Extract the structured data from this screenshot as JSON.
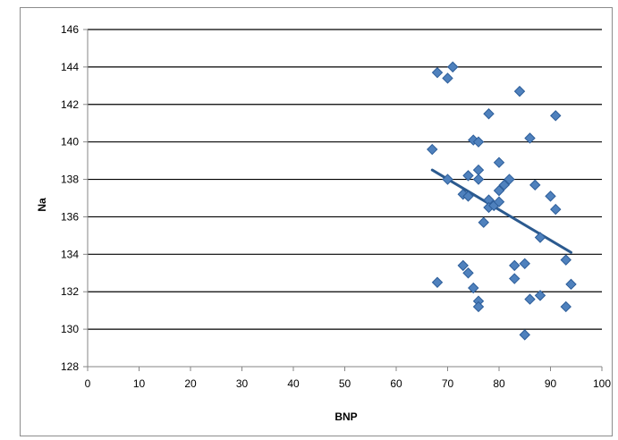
{
  "chart_data": {
    "type": "scatter",
    "title": "",
    "xlabel": "BNP",
    "ylabel": "Na",
    "xlim": [
      0,
      100
    ],
    "ylim": [
      128,
      146
    ],
    "x_ticks": [
      0,
      10,
      20,
      30,
      40,
      50,
      60,
      70,
      80,
      90,
      100
    ],
    "y_ticks": [
      128,
      130,
      132,
      134,
      136,
      138,
      140,
      142,
      144,
      146
    ],
    "grid": "horizontal",
    "legend": "none",
    "colors": {
      "marker": "#4f81bd",
      "marker_edge": "#2c5d99",
      "trendline": "#2b5a8f",
      "gridline": "#000000"
    },
    "series": [
      {
        "marker": "diamond",
        "points": [
          [
            67,
            139.6
          ],
          [
            68,
            143.7
          ],
          [
            68,
            132.5
          ],
          [
            70,
            143.4
          ],
          [
            70,
            138.0
          ],
          [
            71,
            144.0
          ],
          [
            73,
            137.2
          ],
          [
            73,
            133.4
          ],
          [
            74,
            138.2
          ],
          [
            74,
            137.1
          ],
          [
            74,
            133.0
          ],
          [
            75,
            140.1
          ],
          [
            75,
            132.2
          ],
          [
            76,
            140.0
          ],
          [
            76,
            138.5
          ],
          [
            76,
            138.0
          ],
          [
            76,
            131.5
          ],
          [
            76,
            131.2
          ],
          [
            77,
            135.7
          ],
          [
            78,
            141.5
          ],
          [
            78,
            136.9
          ],
          [
            78,
            136.5
          ],
          [
            79,
            136.6
          ],
          [
            80,
            138.9
          ],
          [
            80,
            137.4
          ],
          [
            80,
            136.8
          ],
          [
            81,
            137.7
          ],
          [
            82,
            138.0
          ],
          [
            83,
            133.4
          ],
          [
            83,
            132.7
          ],
          [
            84,
            142.7
          ],
          [
            85,
            133.5
          ],
          [
            85,
            129.7
          ],
          [
            86,
            140.2
          ],
          [
            86,
            131.6
          ],
          [
            87,
            137.7
          ],
          [
            88,
            134.9
          ],
          [
            88,
            131.8
          ],
          [
            90,
            137.1
          ],
          [
            91,
            141.4
          ],
          [
            91,
            136.4
          ],
          [
            93,
            133.7
          ],
          [
            93,
            131.2
          ],
          [
            94,
            132.4
          ]
        ]
      }
    ],
    "trendline": {
      "x": [
        67,
        94
      ],
      "y": [
        138.5,
        134.1
      ]
    }
  }
}
